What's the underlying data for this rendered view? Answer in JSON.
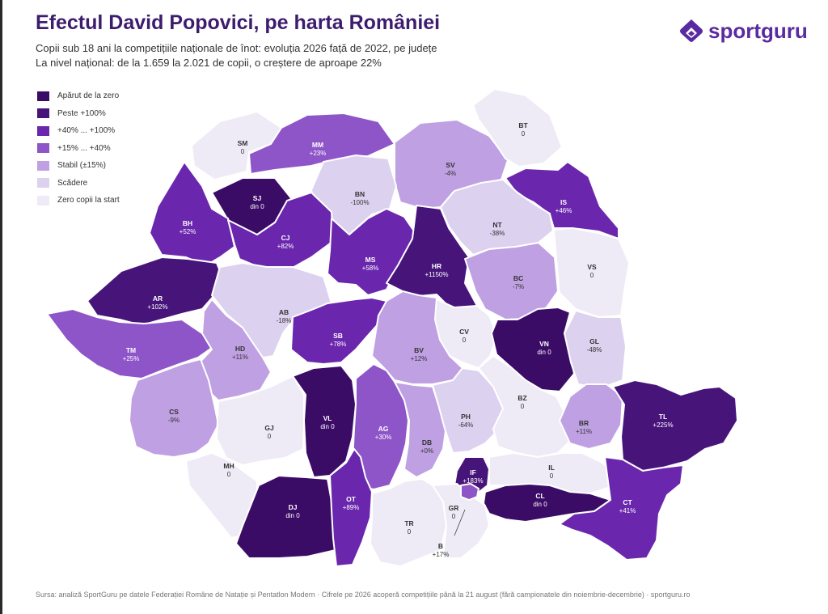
{
  "title": "Efectul David Popovici, pe harta României",
  "subtitle1": "Copii sub 18 ani la competițiile naționale de înot: evoluția 2026 față de 2022, pe județe",
  "subtitle2": "La nivel național: de la 1.659 la 2.021 de copii, o creștere de aproape 22%",
  "logo_text": "sportguru",
  "footer": "Sursa: analiză SportGuru pe datele Federației Române de Natație și Pentatlon Modern · Cifrele pe 2026 acoperă competițiile până la 21 august (fără campionatele din noiembrie-decembrie) · sportguru.ro",
  "legend": [
    {
      "label": "Apărut de la zero",
      "color": "#3b0c66"
    },
    {
      "label": "Peste +100%",
      "color": "#47157a"
    },
    {
      "label": "+40% ... +100%",
      "color": "#6a27ad"
    },
    {
      "label": "+15% ... +40%",
      "color": "#8e55c8"
    },
    {
      "label": "Stabil (±15%)",
      "color": "#bfa0e2"
    },
    {
      "label": "Scădere",
      "color": "#ddd1f0"
    },
    {
      "label": "Zero copii la start",
      "color": "#eeeaf6"
    }
  ],
  "counties": [
    {
      "code": "SM",
      "value": "0",
      "color": "#eeeaf6"
    },
    {
      "code": "MM",
      "value": "+23%",
      "color": "#8e55c8"
    },
    {
      "code": "SV",
      "value": "-4%",
      "color": "#bfa0e2"
    },
    {
      "code": "BT",
      "value": "0",
      "color": "#eeeaf6"
    },
    {
      "code": "SJ",
      "value": "din 0",
      "color": "#3b0c66"
    },
    {
      "code": "BN",
      "value": "-100%",
      "color": "#ddd1f0"
    },
    {
      "code": "IS",
      "value": "+46%",
      "color": "#6a27ad"
    },
    {
      "code": "BH",
      "value": "+52%",
      "color": "#6a27ad"
    },
    {
      "code": "CJ",
      "value": "+82%",
      "color": "#6a27ad"
    },
    {
      "code": "NT",
      "value": "-38%",
      "color": "#ddd1f0"
    },
    {
      "code": "MS",
      "value": "+58%",
      "color": "#6a27ad"
    },
    {
      "code": "HR",
      "value": "+1150%",
      "color": "#47157a"
    },
    {
      "code": "VS",
      "value": "0",
      "color": "#eeeaf6"
    },
    {
      "code": "BC",
      "value": "-7%",
      "color": "#bfa0e2"
    },
    {
      "code": "AR",
      "value": "+102%",
      "color": "#47157a"
    },
    {
      "code": "AB",
      "value": "-18%",
      "color": "#ddd1f0"
    },
    {
      "code": "SB",
      "value": "+78%",
      "color": "#6a27ad"
    },
    {
      "code": "CV",
      "value": "0",
      "color": "#eeeaf6"
    },
    {
      "code": "VN",
      "value": "din 0",
      "color": "#3b0c66"
    },
    {
      "code": "GL",
      "value": "-48%",
      "color": "#ddd1f0"
    },
    {
      "code": "TM",
      "value": "+25%",
      "color": "#8e55c8"
    },
    {
      "code": "HD",
      "value": "+11%",
      "color": "#bfa0e2"
    },
    {
      "code": "BV",
      "value": "+12%",
      "color": "#bfa0e2"
    },
    {
      "code": "CS",
      "value": "-9%",
      "color": "#bfa0e2"
    },
    {
      "code": "GJ",
      "value": "0",
      "color": "#eeeaf6"
    },
    {
      "code": "VL",
      "value": "din 0",
      "color": "#3b0c66"
    },
    {
      "code": "AG",
      "value": "+30%",
      "color": "#8e55c8"
    },
    {
      "code": "DB",
      "value": "+0%",
      "color": "#bfa0e2"
    },
    {
      "code": "PH",
      "value": "-64%",
      "color": "#ddd1f0"
    },
    {
      "code": "BZ",
      "value": "0",
      "color": "#eeeaf6"
    },
    {
      "code": "BR",
      "value": "+11%",
      "color": "#bfa0e2"
    },
    {
      "code": "TL",
      "value": "+225%",
      "color": "#47157a"
    },
    {
      "code": "MH",
      "value": "0",
      "color": "#eeeaf6"
    },
    {
      "code": "DJ",
      "value": "din 0",
      "color": "#3b0c66"
    },
    {
      "code": "OT",
      "value": "+89%",
      "color": "#6a27ad"
    },
    {
      "code": "IF",
      "value": "+183%",
      "color": "#47157a"
    },
    {
      "code": "IL",
      "value": "0",
      "color": "#eeeaf6"
    },
    {
      "code": "CL",
      "value": "din 0",
      "color": "#3b0c66"
    },
    {
      "code": "CT",
      "value": "+41%",
      "color": "#6a27ad"
    },
    {
      "code": "TR",
      "value": "0",
      "color": "#eeeaf6"
    },
    {
      "code": "GR",
      "value": "0",
      "color": "#eeeaf6"
    },
    {
      "code": "B",
      "value": "+17%",
      "color": "#8e55c8"
    }
  ]
}
